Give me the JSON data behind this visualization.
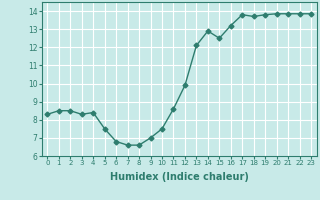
{
  "x": [
    0,
    1,
    2,
    3,
    4,
    5,
    6,
    7,
    8,
    9,
    10,
    11,
    12,
    13,
    14,
    15,
    16,
    17,
    18,
    19,
    20,
    21,
    22,
    23
  ],
  "y": [
    8.3,
    8.5,
    8.5,
    8.3,
    8.4,
    7.5,
    6.8,
    6.6,
    6.6,
    7.0,
    7.5,
    8.6,
    9.9,
    12.1,
    12.9,
    12.5,
    13.2,
    13.8,
    13.7,
    13.8,
    13.85,
    13.85,
    13.85,
    13.85
  ],
  "line_color": "#2e7d6e",
  "marker": "D",
  "markersize": 2.5,
  "linewidth": 1.0,
  "xlabel": "Humidex (Indice chaleur)",
  "xlabel_fontsize": 7,
  "bg_color": "#c8eae8",
  "grid_color": "#ffffff",
  "tick_label_color": "#2e7d6e",
  "axis_color": "#2e7d6e",
  "ylim": [
    6,
    14.5
  ],
  "xlim": [
    -0.5,
    23.5
  ],
  "yticks": [
    6,
    7,
    8,
    9,
    10,
    11,
    12,
    13,
    14
  ],
  "xticks": [
    0,
    1,
    2,
    3,
    4,
    5,
    6,
    7,
    8,
    9,
    10,
    11,
    12,
    13,
    14,
    15,
    16,
    17,
    18,
    19,
    20,
    21,
    22,
    23
  ]
}
